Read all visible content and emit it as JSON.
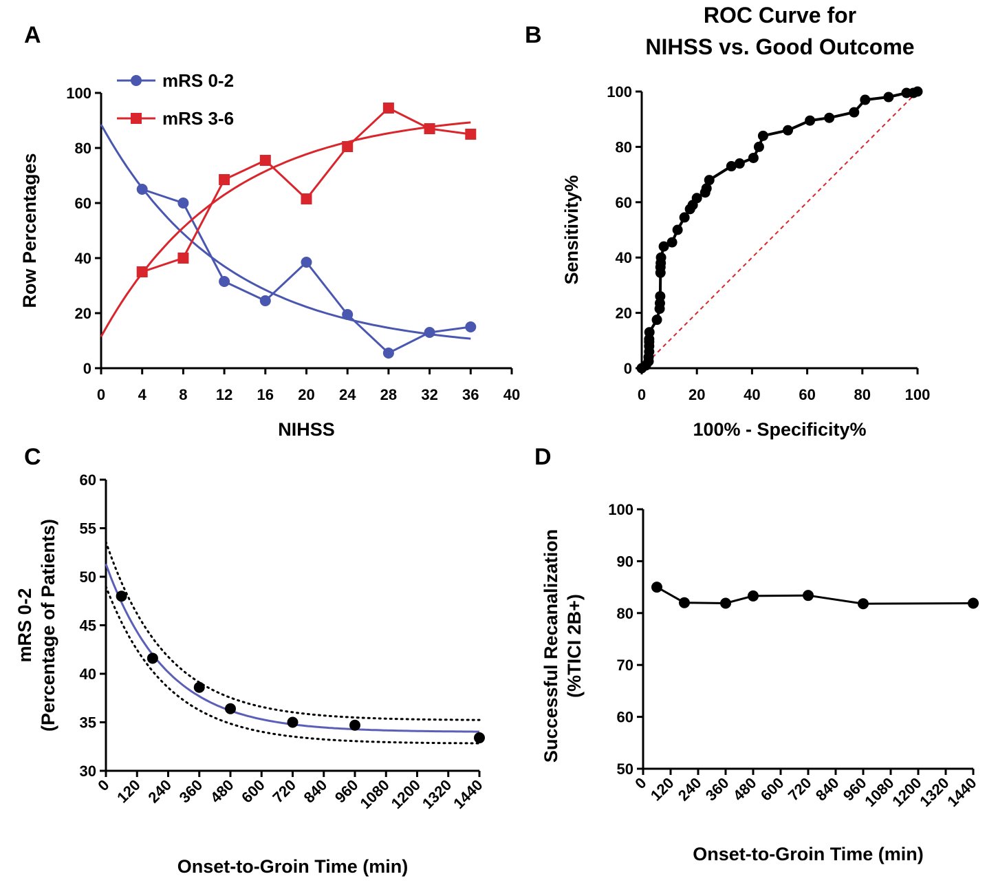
{
  "chart_data": [
    {
      "panel": "A",
      "type": "line",
      "title": "",
      "xlabel": "NIHSS",
      "ylabel": "Row Percentages",
      "xlim": [
        0,
        40
      ],
      "ylim": [
        0,
        100
      ],
      "xticks": [
        "0",
        "4",
        "8",
        "12",
        "16",
        "20",
        "24",
        "28",
        "32",
        "36",
        "40"
      ],
      "yticks": [
        "0",
        "20",
        "40",
        "60",
        "80",
        "100"
      ],
      "legend_position": "top-left",
      "x": [
        4,
        8,
        12,
        16,
        20,
        24,
        28,
        32,
        36
      ],
      "series": [
        {
          "name": "mRS 0-2",
          "marker": "circle",
          "color": "#4a57b0",
          "values": [
            65,
            60,
            31.5,
            24.5,
            38.5,
            19.5,
            5.5,
            13,
            15
          ],
          "fit": {
            "type": "exponential decay",
            "x": [
              0,
              36
            ],
            "y0": 88.5,
            "plateau": 6.5,
            "k": 0.0824
          }
        },
        {
          "name": "mRS 3-6",
          "marker": "square",
          "color": "#d9262c",
          "values": [
            35,
            40,
            68.5,
            75.5,
            61.5,
            80.5,
            94.5,
            87,
            85
          ],
          "fit": {
            "type": "exponential association",
            "x": [
              0,
              36
            ],
            "y0": 11.5,
            "plateau": 93.5,
            "k": 0.0824
          }
        }
      ]
    },
    {
      "panel": "B",
      "type": "line",
      "title": "ROC Curve for NIHSS vs.  Good Outcome",
      "title_lines": [
        "ROC Curve for",
        "NIHSS vs.  Good Outcome"
      ],
      "xlabel": "100% - Specificity%",
      "ylabel": "Sensitivity%",
      "xlim": [
        0,
        100
      ],
      "ylim": [
        0,
        100
      ],
      "xticks": [
        "0",
        "20",
        "40",
        "60",
        "80",
        "100"
      ],
      "yticks": [
        "0",
        "20",
        "40",
        "60",
        "80",
        "100"
      ],
      "series": [
        {
          "name": "",
          "marker": "circle",
          "color": "#000000",
          "x": [
            0,
            1.5,
            2.5,
            2.5,
            2.7,
            2.7,
            2.7,
            2.7,
            2.8,
            5.5,
            6.5,
            6.6,
            6.7,
            6.8,
            6.8,
            6.9,
            7,
            8,
            11,
            13,
            15.5,
            17.5,
            18.5,
            20,
            23,
            23.5,
            24.5,
            32.5,
            35.5,
            40.5,
            42.5,
            44,
            53,
            61,
            68,
            77,
            81,
            89.5,
            96,
            98.5,
            100
          ],
          "y": [
            0,
            1,
            2.5,
            4,
            6,
            8,
            9.5,
            10.5,
            13,
            17.5,
            21.5,
            23.5,
            26,
            34.5,
            36.5,
            38,
            40,
            44,
            45.5,
            50,
            54.5,
            57.5,
            59,
            61.5,
            63.5,
            65,
            68,
            73,
            74,
            76,
            80,
            84,
            86,
            89.5,
            90.5,
            92.5,
            97,
            98,
            99.5,
            99.5,
            100
          ]
        },
        {
          "name": "",
          "style": "dashed",
          "color": "#d9262c",
          "x": [
            0,
            100
          ],
          "y": [
            0,
            100
          ]
        }
      ]
    },
    {
      "panel": "C",
      "type": "scatter",
      "title": "",
      "xlabel": "Onset-to-Groin Time  (min)",
      "ylabel": "mRS 0-2 (Percentage of Patients)",
      "ylabel_lines": [
        "mRS 0-2",
        "(Percentage of Patients)"
      ],
      "xlim": [
        0,
        1440
      ],
      "ylim": [
        30,
        60
      ],
      "xticks": [
        "0",
        "120",
        "240",
        "360",
        "480",
        "600",
        "720",
        "840",
        "960",
        "1080",
        "1200",
        "1320",
        "1440"
      ],
      "yticks": [
        "30",
        "35",
        "40",
        "45",
        "50",
        "55",
        "60"
      ],
      "series": [
        {
          "name": "",
          "marker": "circle",
          "color": "#000000",
          "x": [
            60,
            180,
            360,
            480,
            720,
            960,
            1440
          ],
          "y": [
            48,
            41.6,
            38.6,
            36.4,
            35,
            34.7,
            33.4
          ]
        }
      ],
      "fit": {
        "type": "one-phase exponential decay",
        "color": "#5b5fb8",
        "y0": 51.3,
        "plateau": 34,
        "k": 0.0043
      },
      "confidence_band": {
        "style": "dotted",
        "color": "#000000",
        "lower": {
          "y0": 49.0,
          "plateau": 32.8
        },
        "upper": {
          "y0": 53.6,
          "plateau": 35.2
        }
      }
    },
    {
      "panel": "D",
      "type": "line",
      "title": "",
      "xlabel": "Onset-to-Groin Time  (min)",
      "ylabel": "Successful Recanalization (%TICI 2B+)",
      "ylabel_lines": [
        "Successful Recanalization",
        "(%TICI 2B+)"
      ],
      "xlim": [
        0,
        1440
      ],
      "ylim": [
        50,
        100
      ],
      "xticks": [
        "0",
        "120",
        "240",
        "360",
        "480",
        "600",
        "720",
        "840",
        "960",
        "1080",
        "1200",
        "1320",
        "1440"
      ],
      "yticks": [
        "50",
        "60",
        "70",
        "80",
        "90",
        "100"
      ],
      "series": [
        {
          "name": "",
          "marker": "circle",
          "color": "#000000",
          "x": [
            60,
            180,
            360,
            480,
            720,
            960,
            1440
          ],
          "y": [
            85,
            82,
            81.9,
            83.3,
            83.4,
            81.8,
            81.9
          ]
        }
      ]
    }
  ]
}
